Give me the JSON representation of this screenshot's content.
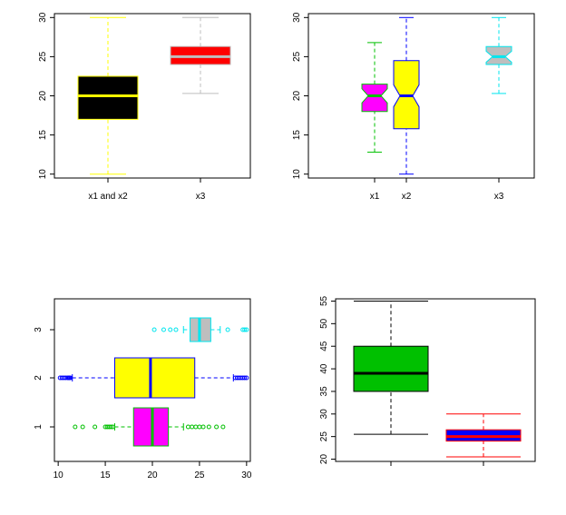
{
  "chart_data": [
    {
      "type": "boxplot",
      "orientation": "vertical",
      "notch": false,
      "categories": [
        "x1 and x2",
        "x3"
      ],
      "ylim": [
        9.5,
        30.5
      ],
      "yticks": [
        10,
        15,
        20,
        25,
        30
      ],
      "boxes": [
        {
          "whisker_low": 10,
          "q1": 17,
          "median": 20,
          "q3": 22.5,
          "whisker_high": 30,
          "fill": "#000000",
          "stroke": "#ffff00",
          "outliers": []
        },
        {
          "whisker_low": 20.3,
          "q1": 24,
          "median": 25,
          "q3": 26.3,
          "whisker_high": 30,
          "fill": "#ff0000",
          "stroke": "#bebebe",
          "outliers": []
        }
      ]
    },
    {
      "type": "boxplot",
      "orientation": "vertical",
      "notch": true,
      "categories": [
        "x1",
        "x2",
        "x3"
      ],
      "ylim": [
        9.5,
        30.5
      ],
      "yticks": [
        10,
        15,
        20,
        25,
        30
      ],
      "boxes": [
        {
          "whisker_low": 12.8,
          "q1": 18,
          "median": 20,
          "q3": 21.5,
          "whisker_high": 26.8,
          "notch": [
            19.1,
            20.9
          ],
          "fill": "#ff00ff",
          "stroke": "#00c000",
          "outliers": []
        },
        {
          "whisker_low": 10,
          "q1": 15.8,
          "median": 20,
          "q3": 24.5,
          "whisker_high": 30,
          "notch": [
            18.6,
            21.4
          ],
          "fill": "#ffff00",
          "stroke": "#0000ff",
          "outliers": []
        },
        {
          "whisker_low": 20.3,
          "q1": 24,
          "median": 25,
          "q3": 26.3,
          "whisker_high": 30,
          "notch": [
            24.3,
            25.7
          ],
          "fill": "#bebebe",
          "stroke": "#00e5ee",
          "outliers": []
        }
      ]
    },
    {
      "type": "boxplot",
      "orientation": "horizontal",
      "notch": false,
      "categories": [
        "1",
        "2",
        "3"
      ],
      "xlim": [
        9.6,
        30.4
      ],
      "xticks": [
        10,
        15,
        20,
        25,
        30
      ],
      "boxes": [
        {
          "whisker_low": 16,
          "q1": 18,
          "median": 20,
          "q3": 21.7,
          "whisker_high": 23.3,
          "fill": "#ff00ff",
          "stroke": "#00c000",
          "outliers": [
            11.8,
            12.6,
            13.9,
            15.0,
            15.2,
            15.4,
            15.6,
            15.8,
            23.8,
            24.2,
            24.6,
            25.0,
            25.4,
            26.0,
            26.8,
            27.5
          ]
        },
        {
          "whisker_low": 11.5,
          "q1": 16,
          "median": 19.8,
          "q3": 24.5,
          "whisker_high": 28.6,
          "fill": "#ffff00",
          "stroke": "#0000ff",
          "outliers": [
            10.2,
            10.4,
            10.6,
            10.8,
            11.0,
            11.1,
            11.2,
            11.3,
            28.8,
            29.0,
            29.2,
            29.4,
            29.6,
            29.8,
            30.0
          ]
        },
        {
          "whisker_low": 23.3,
          "q1": 24,
          "median": 25,
          "q3": 26.2,
          "whisker_high": 27.2,
          "fill": "#bebebe",
          "stroke": "#00e5ee",
          "outliers": [
            20.2,
            21.2,
            21.9,
            22.5,
            28.0,
            29.6,
            29.8,
            30.0
          ]
        }
      ]
    },
    {
      "type": "boxplot",
      "orientation": "vertical",
      "notch": false,
      "categories": [
        "",
        ""
      ],
      "ylim": [
        19.5,
        55.5
      ],
      "yticks": [
        20,
        25,
        30,
        35,
        40,
        45,
        50,
        55
      ],
      "boxes": [
        {
          "whisker_low": 25.5,
          "q1": 35,
          "median": 39,
          "q3": 45,
          "whisker_high": 55,
          "fill": "#00c000",
          "stroke": "#000000",
          "outliers": []
        },
        {
          "whisker_low": 20.5,
          "q1": 24,
          "median": 25,
          "q3": 26.5,
          "whisker_high": 30,
          "fill": "#0000ff",
          "stroke": "#ff0000",
          "outliers": []
        }
      ]
    }
  ]
}
